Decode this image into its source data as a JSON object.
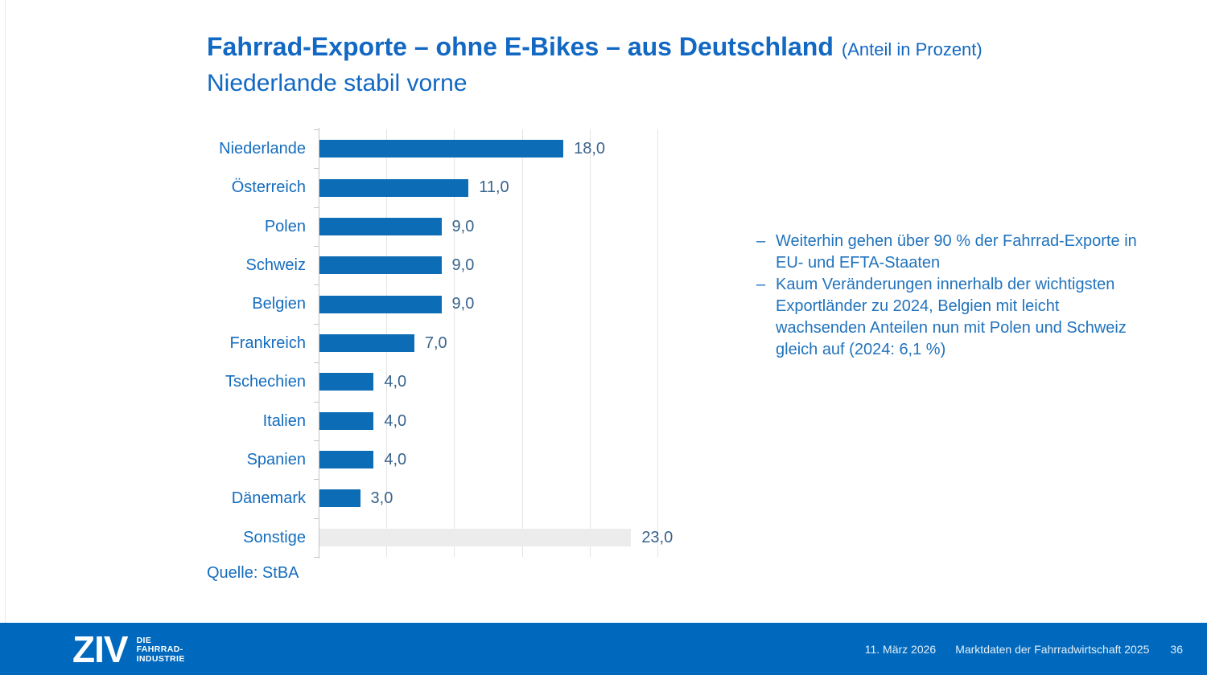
{
  "slide": {
    "title": "Fahrrad-Exporte – ohne E-Bikes – aus Deutschland",
    "title_suffix": "(Anteil in Prozent)",
    "subtitle": "Niederlande stabil vorne",
    "source": "Quelle: StBA"
  },
  "chart_data": {
    "type": "bar",
    "orientation": "horizontal",
    "title": "Fahrrad-Exporte – ohne E-Bikes – aus Deutschland (Anteil in Prozent)",
    "categories": [
      "Niederlande",
      "Österreich",
      "Polen",
      "Schweiz",
      "Belgien",
      "Frankreich",
      "Tschechien",
      "Italien",
      "Spanien",
      "Dänemark",
      "Sonstige"
    ],
    "values": [
      18.0,
      11.0,
      9.0,
      9.0,
      9.0,
      7.0,
      4.0,
      4.0,
      4.0,
      3.0,
      23.0
    ],
    "value_labels": [
      "18,0",
      "11,0",
      "9,0",
      "9,0",
      "9,0",
      "7,0",
      "4,0",
      "4,0",
      "4,0",
      "3,0",
      "23,0"
    ],
    "bar_colors": [
      "#0c6cb6",
      "#0c6cb6",
      "#0c6cb6",
      "#0c6cb6",
      "#0c6cb6",
      "#0c6cb6",
      "#0c6cb6",
      "#0c6cb6",
      "#0c6cb6",
      "#0c6cb6",
      "#ececec"
    ],
    "xlabel": "",
    "ylabel": "",
    "xlim": [
      0,
      25
    ],
    "gridline_step": 5,
    "grid": true,
    "legend": false
  },
  "notes": {
    "items": [
      {
        "bullet": "–",
        "text": "Weiterhin gehen über 90 % der Fahrrad-Exporte in\nEU- und EFTA-Staaten"
      },
      {
        "bullet": "–",
        "text": "Kaum Veränderungen innerhalb der wichtigsten\nExportländer zu 2024, Belgien mit leicht\nwachsenden Anteilen nun mit Polen und Schweiz\ngleich auf (2024: 6,1 %)"
      }
    ]
  },
  "footer": {
    "logo_text": "ZIV",
    "logo_sub": [
      "DIE",
      "FAHRRAD-",
      "INDUSTRIE"
    ],
    "date": "11. März 2026",
    "document": "Marktdaten der Fahrradwirtschaft 2025",
    "page": "36"
  },
  "colors": {
    "title_blue": "#1268c2",
    "bar_blue": "#0c6cb6",
    "other_bar_gray": "#ececec",
    "category_label_blue": "#156dbe",
    "value_label_blue": "#3a648c",
    "notes_blue": "#2173bc",
    "footer_background": "#0069bd",
    "gridline_gray": "#e4e4e4",
    "axis_gray": "#c4c4c4"
  }
}
